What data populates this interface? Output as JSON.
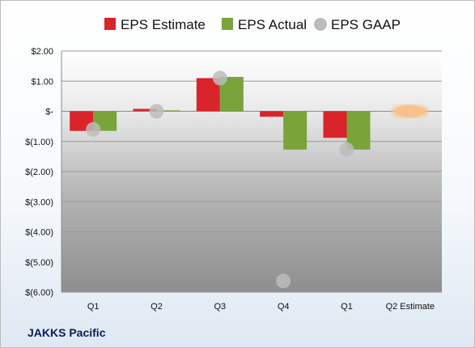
{
  "company": "JAKKS Pacific",
  "chart_data": {
    "type": "bar",
    "categories": [
      "Q1",
      "Q2",
      "Q3",
      "Q4",
      "Q1",
      "Q2 Estimate"
    ],
    "series": [
      {
        "name": "EPS Estimate",
        "color": "#d9242b",
        "values": [
          -0.65,
          0.08,
          1.1,
          -0.18,
          -0.88,
          0.0
        ]
      },
      {
        "name": "EPS Actual",
        "color": "#7aa33a",
        "values": [
          -0.65,
          0.03,
          1.14,
          -1.27,
          -1.27,
          null
        ]
      },
      {
        "name": "EPS GAAP",
        "color": "#bcbcbc",
        "marker": "circle",
        "values": [
          -0.6,
          0.0,
          1.1,
          -5.63,
          -1.27,
          null
        ]
      }
    ],
    "estimate_highlight": {
      "category": "Q2 Estimate",
      "value": 0.0,
      "color": "#f7c08a"
    },
    "yticks": [
      "$2.00",
      "$1.00",
      "$-",
      "$(1.00)",
      "$(2.00)",
      "$(3.00)",
      "$(4.00)",
      "$(5.00)",
      "$(6.00)"
    ],
    "ylim": [
      -6,
      2
    ],
    "grid": true,
    "legend_position": "top"
  }
}
